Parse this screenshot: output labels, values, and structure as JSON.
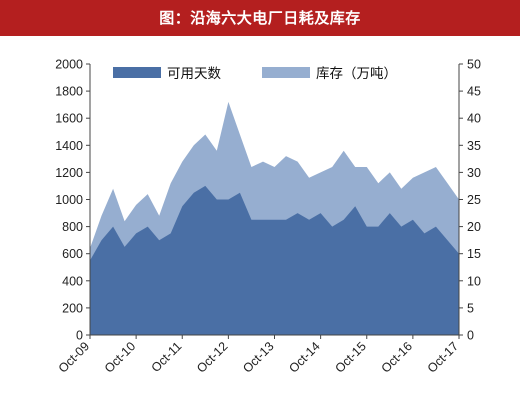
{
  "title": "图：沿海六大电厂日耗及库存",
  "chart_data": {
    "type": "area",
    "title": "图：沿海六大电厂日耗及库存",
    "x": [
      "Oct-09",
      "Jan-10",
      "Apr-10",
      "Jul-10",
      "Oct-10",
      "Jan-11",
      "Apr-11",
      "Jul-11",
      "Oct-11",
      "Jan-12",
      "Apr-12",
      "Jul-12",
      "Oct-12",
      "Jan-13",
      "Apr-13",
      "Jul-13",
      "Oct-13",
      "Jan-14",
      "Apr-14",
      "Jul-14",
      "Oct-14",
      "Jan-15",
      "Apr-15",
      "Jul-15",
      "Oct-15",
      "Jan-16",
      "Apr-16",
      "Jul-16",
      "Oct-16",
      "Jan-17",
      "Apr-17",
      "Jul-17",
      "Oct-17"
    ],
    "x_tick_labels": [
      "Oct-09",
      "Oct-10",
      "Oct-11",
      "Oct-12",
      "Oct-13",
      "Oct-14",
      "Oct-15",
      "Oct-16",
      "Oct-17"
    ],
    "y_left": {
      "ylim": [
        0,
        2000
      ],
      "ticks": [
        "0",
        "200",
        "400",
        "600",
        "800",
        "1000",
        "1200",
        "1400",
        "1600",
        "1800",
        "2000"
      ]
    },
    "y_right": {
      "ylim": [
        0,
        50
      ],
      "ticks": [
        "0",
        "5",
        "10",
        "15",
        "20",
        "25",
        "30",
        "35",
        "40",
        "45",
        "50"
      ]
    },
    "legend_position": "top",
    "grid": false,
    "series": [
      {
        "name": "可用天数",
        "axis": "left",
        "style": "area",
        "color": "#4a6fa5",
        "values": [
          550,
          700,
          800,
          650,
          750,
          800,
          700,
          750,
          950,
          1050,
          1100,
          1000,
          1000,
          1050,
          850,
          850,
          850,
          850,
          900,
          850,
          900,
          800,
          850,
          950,
          800,
          800,
          900,
          800,
          850,
          750,
          800,
          700,
          600
        ]
      },
      {
        "name": "库存（万吨）",
        "axis": "right",
        "style": "area",
        "color": "#96aed0",
        "values": [
          16,
          22,
          27,
          21,
          24,
          26,
          22,
          28,
          32,
          35,
          37,
          34,
          43,
          37,
          31,
          32,
          31,
          33,
          32,
          29,
          30,
          31,
          34,
          31,
          31,
          28,
          30,
          27,
          29,
          30,
          31,
          28,
          25
        ]
      }
    ]
  }
}
